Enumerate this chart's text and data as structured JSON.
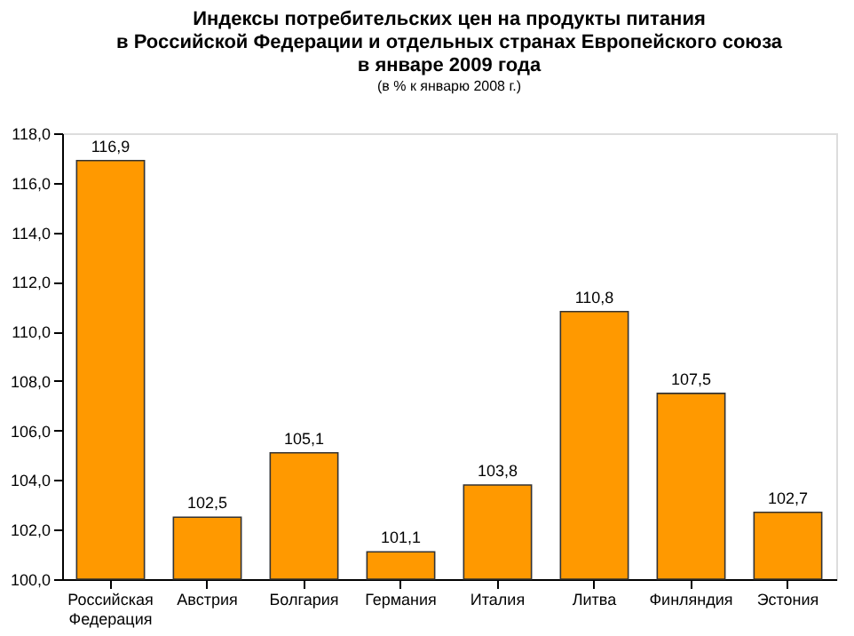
{
  "chart_data": {
    "type": "bar",
    "title": "Индексы потребительских цен на продукты питания\nв Российской Федерации и отдельных странах Европейского союза\nв январе 2009 года",
    "subtitle": "(в % к январю 2008 г.)",
    "categories": [
      "Российская Федерация",
      "Австрия",
      "Болгария",
      "Германия",
      "Италия",
      "Литва",
      "Финляндия",
      "Эстония"
    ],
    "values": [
      116.9,
      102.5,
      105.1,
      101.1,
      103.8,
      110.8,
      107.5,
      102.7
    ],
    "value_labels": [
      "116,9",
      "102,5",
      "105,1",
      "101,1",
      "103,8",
      "110,8",
      "107,5",
      "102,7"
    ],
    "color": "#ff9900",
    "ylim": [
      100,
      118
    ],
    "yticks": [
      {
        "value": 100,
        "label": "100,0"
      },
      {
        "value": 102,
        "label": "102,0"
      },
      {
        "value": 104,
        "label": "104,0"
      },
      {
        "value": 106,
        "label": "106,0"
      },
      {
        "value": 108,
        "label": "108,0"
      },
      {
        "value": 110,
        "label": "110,0"
      },
      {
        "value": 112,
        "label": "112,0"
      },
      {
        "value": 114,
        "label": "114,0"
      },
      {
        "value": 116,
        "label": "116,0"
      },
      {
        "value": 118,
        "label": "118,0"
      }
    ],
    "grid": false
  }
}
